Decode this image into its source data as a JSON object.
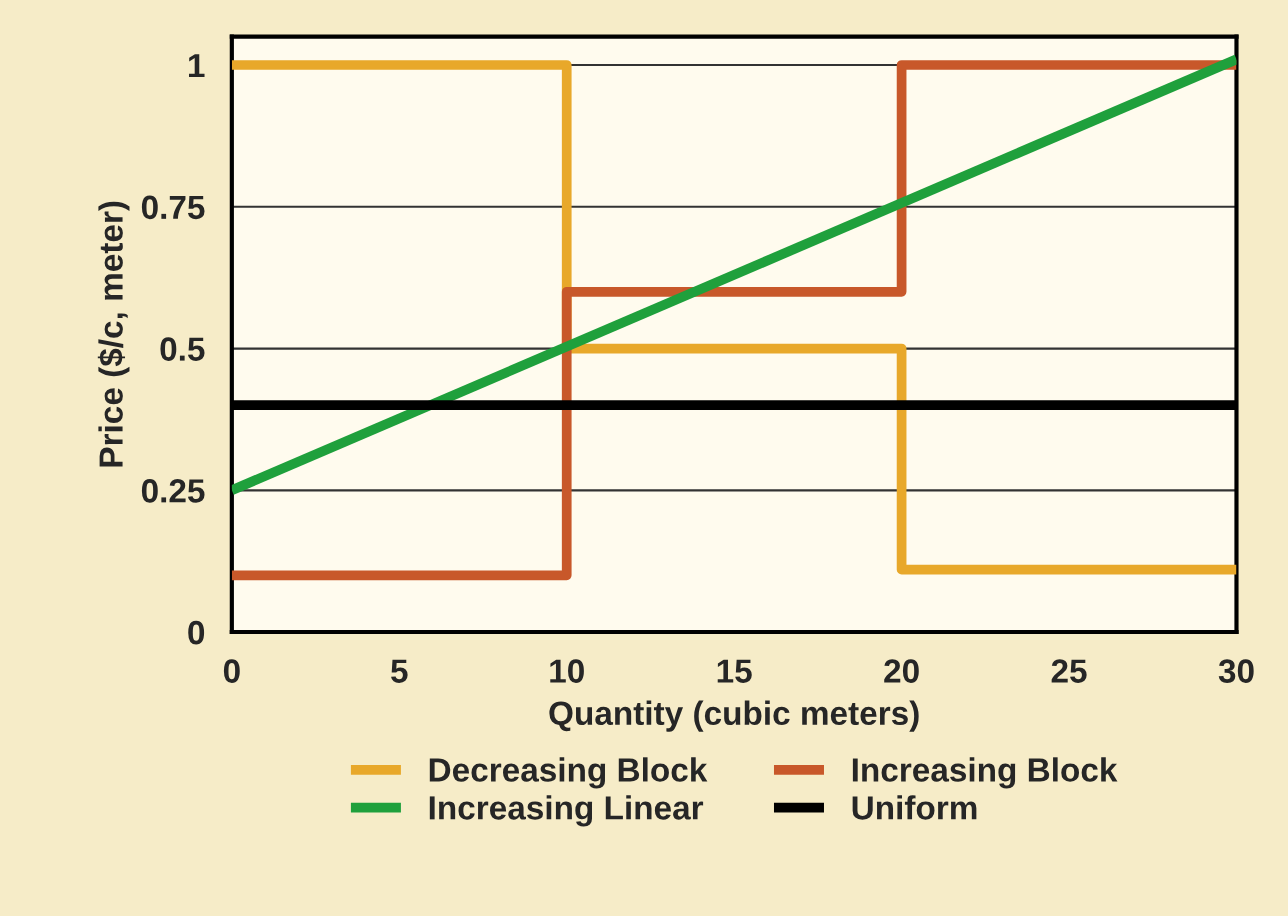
{
  "chart_data": {
    "type": "line",
    "xlabel": "Quantity (cubic meters)",
    "ylabel": "Price ($/c, meter)",
    "xlim": [
      0,
      30
    ],
    "xticks": [
      0,
      5,
      10,
      15,
      20,
      25,
      30
    ],
    "ylim": [
      0,
      1.05
    ],
    "yticks": [
      0,
      0.25,
      0.5,
      0.75,
      1
    ],
    "grid": "y",
    "legend": "bottom",
    "line_style": "solid",
    "marker": "none",
    "series": [
      {
        "name": "Decreasing Block",
        "color": "#e8a82a",
        "x": [
          0,
          10,
          10,
          20,
          20,
          30
        ],
        "values": [
          1,
          1,
          0.5,
          0.5,
          0.11,
          0.11
        ]
      },
      {
        "name": "Increasing Block",
        "color": "#c8582a",
        "x": [
          0,
          10,
          10,
          20,
          20,
          30
        ],
        "values": [
          0.1,
          0.1,
          0.6,
          0.6,
          1,
          1
        ]
      },
      {
        "name": "Increasing Linear",
        "color": "#1fa03c",
        "x": [
          0,
          30
        ],
        "values": [
          0.25,
          1.01
        ]
      },
      {
        "name": "Uniform",
        "color": "#000000",
        "x": [
          0,
          30
        ],
        "values": [
          0.4,
          0.4
        ]
      }
    ]
  }
}
